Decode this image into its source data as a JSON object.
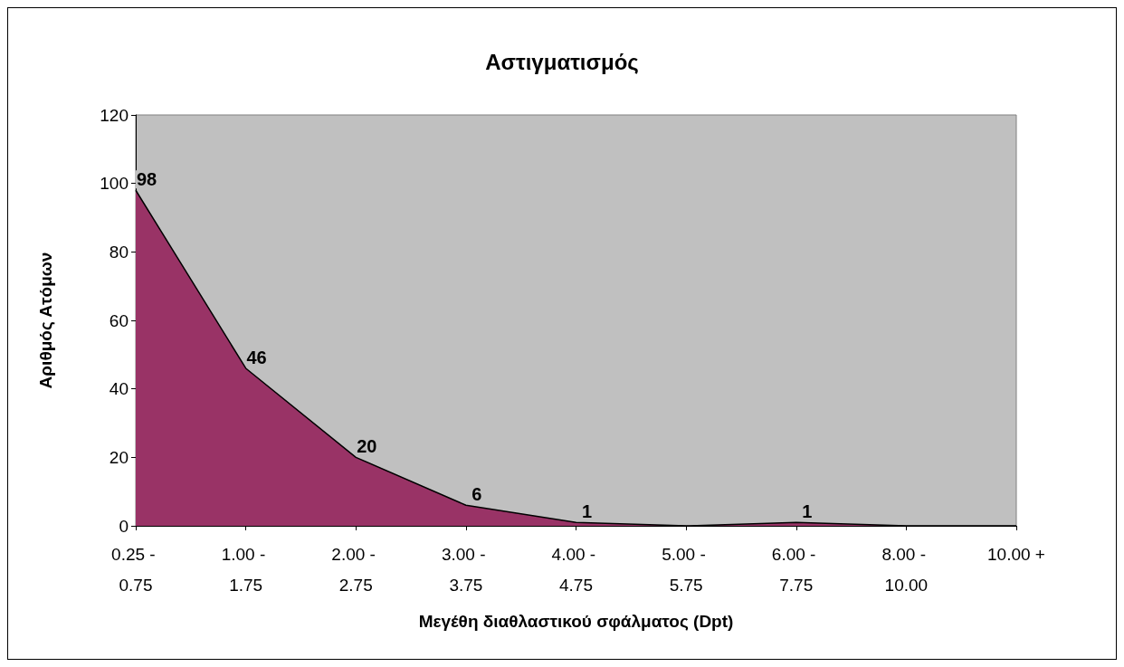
{
  "chart_data": {
    "type": "area",
    "title": "Αστιγματισμός",
    "xlabel": "Μεγέθη διαθλαστικού σφάλματος (Dpt)",
    "ylabel": "Αριθμός Ατόμων",
    "categories": [
      "0.25 - 0.75",
      "1.00 - 1.75",
      "2.00 - 2.75",
      "3.00 - 3.75",
      "4.00 - 4.75",
      "5.00 - 5.75",
      "6.00 - 7.75",
      "8.00 - 10.00",
      "10.00 +"
    ],
    "values": [
      98,
      46,
      20,
      6,
      1,
      0,
      1,
      0,
      0
    ],
    "value_labels": [
      "98",
      "46",
      "20",
      "6",
      "1",
      null,
      "1",
      null,
      null
    ],
    "color": "#993366",
    "ylim": [
      0,
      120
    ],
    "yticks": [
      0,
      20,
      40,
      60,
      80,
      100,
      120
    ],
    "grid": false
  }
}
